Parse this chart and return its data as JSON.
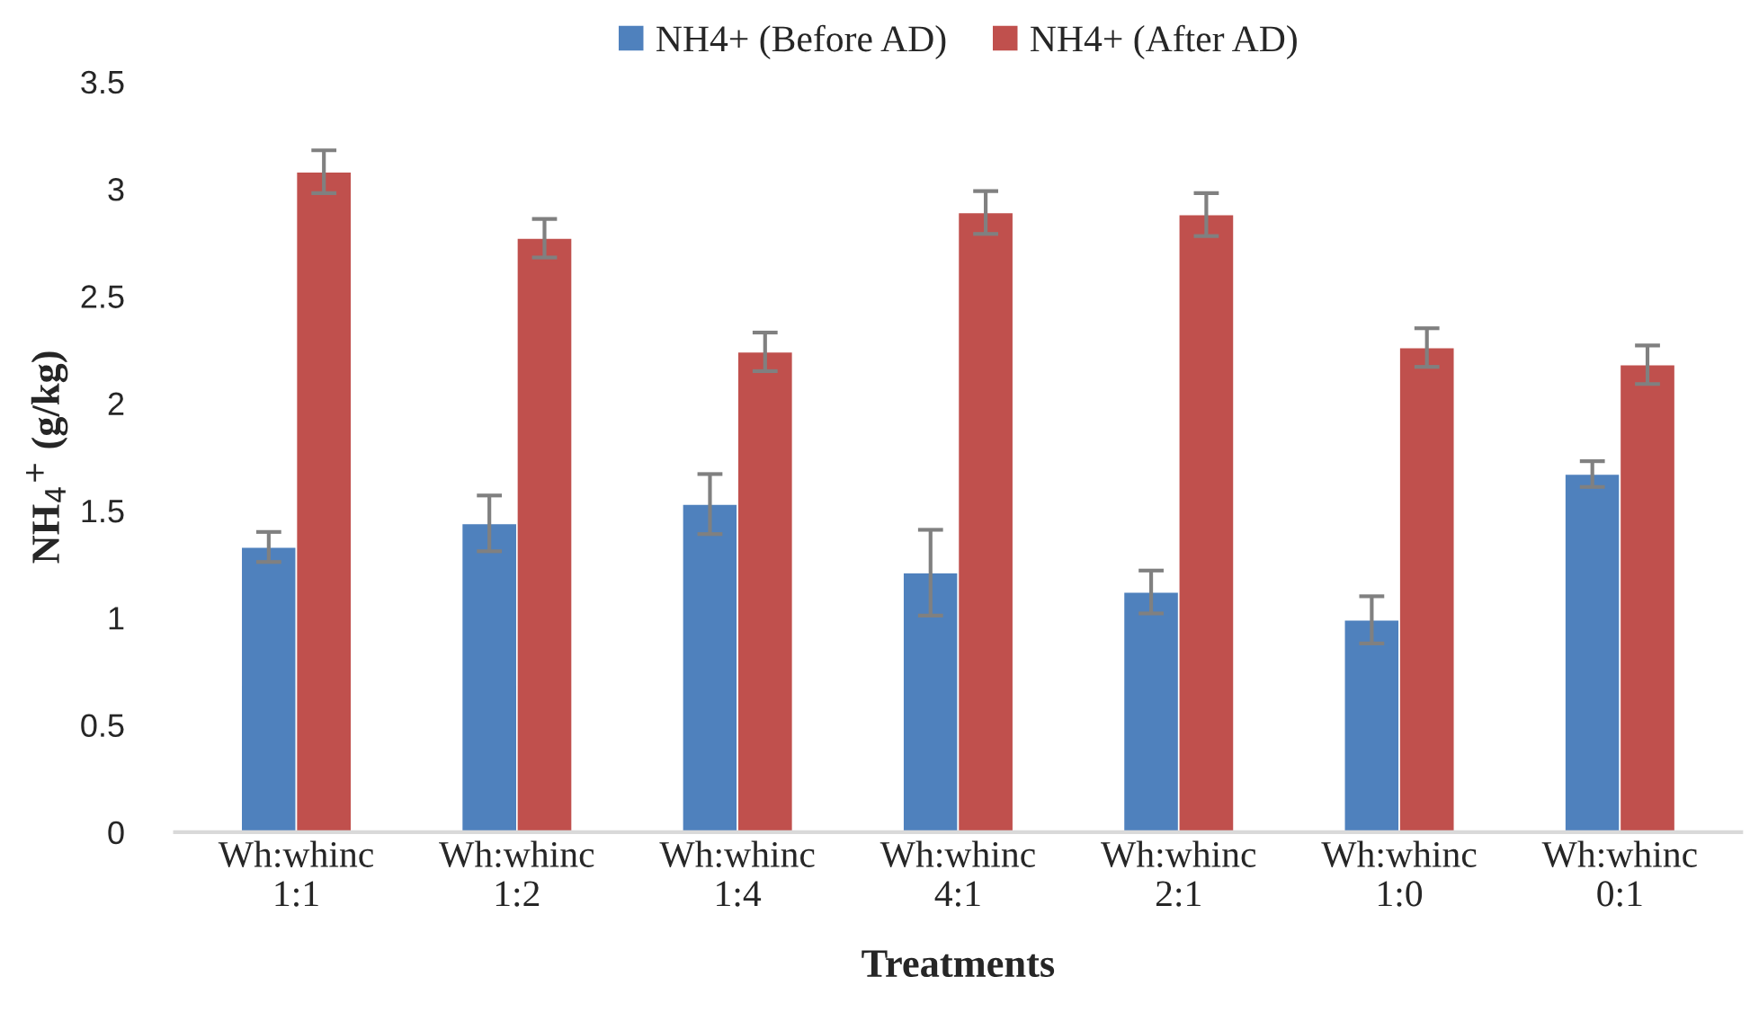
{
  "chart_data": {
    "type": "bar",
    "xlabel": "Treatments",
    "ylabel": "NH$_{4}$$^{+}$ (g/kg)",
    "categories": [
      "Wh:whinc\n1:1",
      "Wh:whinc\n1:2",
      "Wh:whinc\n1:4",
      "Wh:whinc\n4:1",
      "Wh:whinc\n2:1",
      "Wh:whinc\n1:0",
      "Wh:whinc\n0:1"
    ],
    "series": [
      {
        "name": "NH4+ (Before AD)",
        "color": "#4f81bd",
        "values": [
          1.33,
          1.44,
          1.53,
          1.21,
          1.12,
          0.99,
          1.67
        ],
        "errors": [
          0.07,
          0.13,
          0.14,
          0.2,
          0.1,
          0.11,
          0.06
        ]
      },
      {
        "name": "NH4+ (After AD)",
        "color": "#c0504d",
        "values": [
          3.08,
          2.77,
          2.24,
          2.89,
          2.88,
          2.26,
          2.18
        ],
        "errors": [
          0.1,
          0.09,
          0.09,
          0.1,
          0.1,
          0.09,
          0.09
        ]
      }
    ],
    "ylim": [
      0,
      3.5
    ],
    "yticks": [
      0,
      0.5,
      1,
      1.5,
      2,
      2.5,
      3,
      3.5
    ],
    "grid": false,
    "legend": "top"
  }
}
